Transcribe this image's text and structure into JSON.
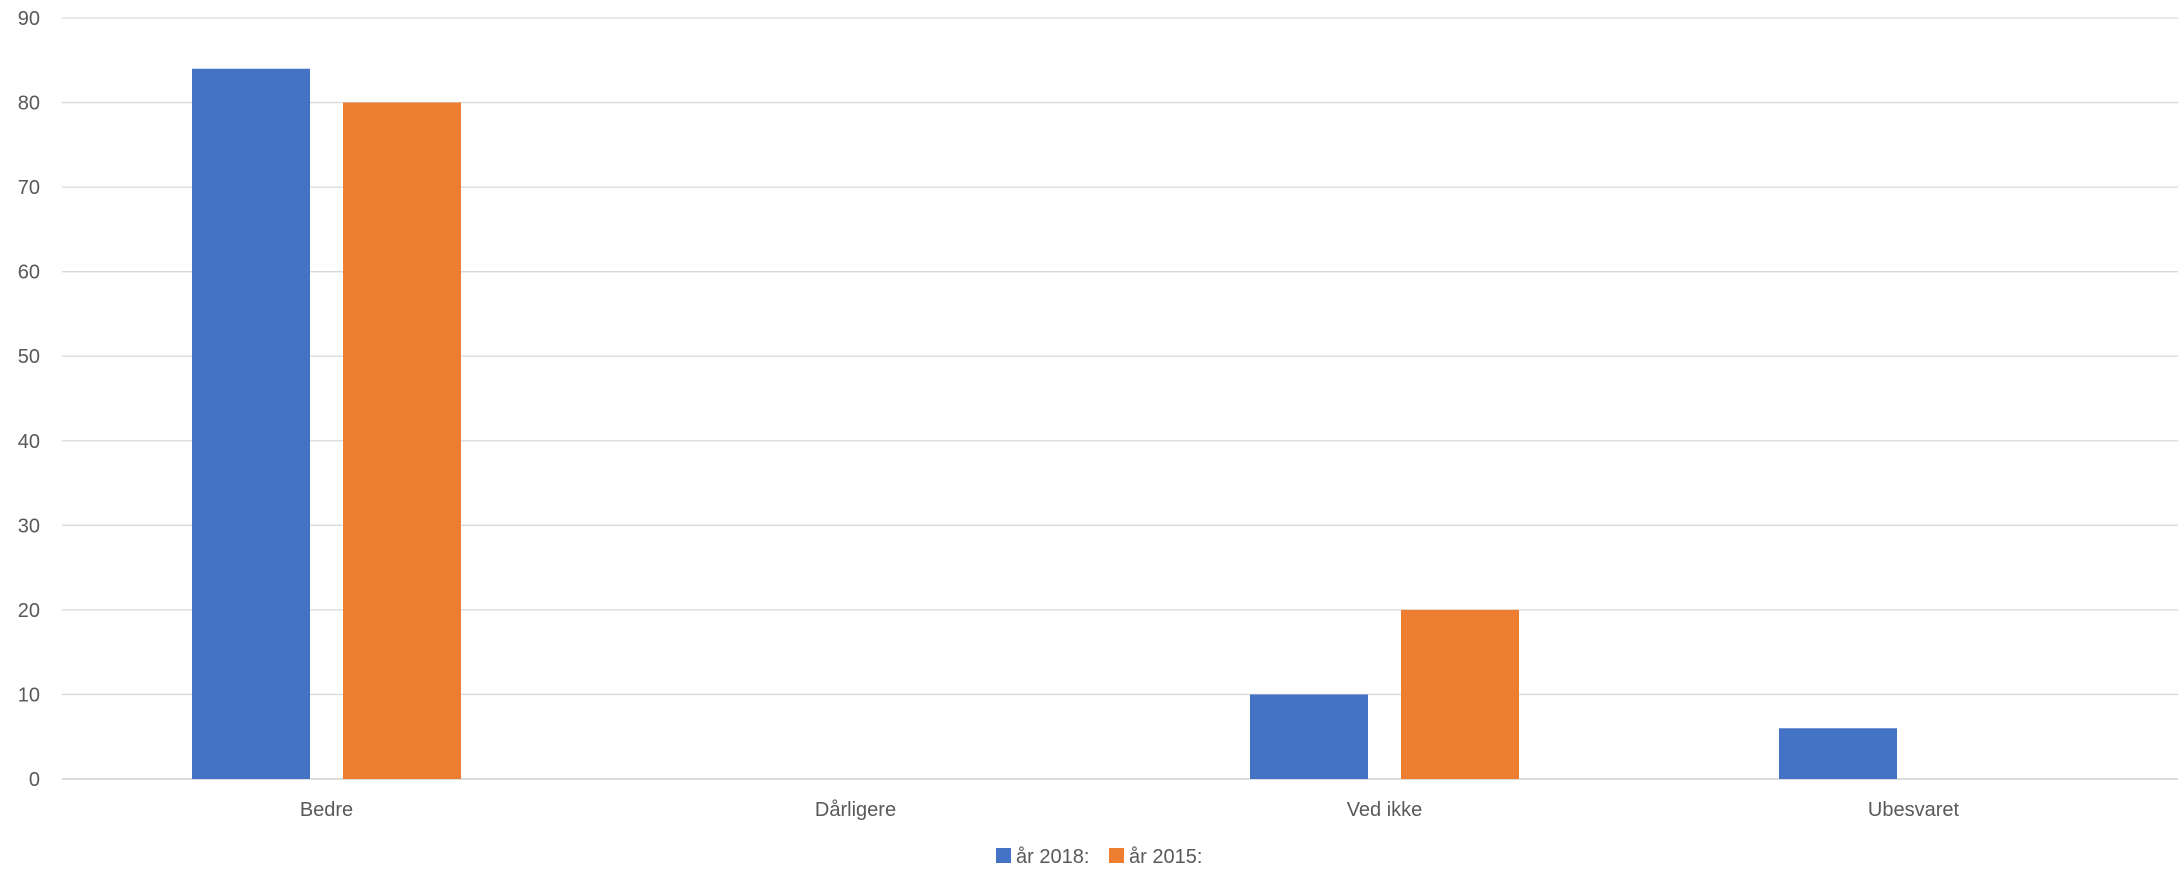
{
  "chart_data": {
    "type": "bar",
    "title": "",
    "xlabel": "",
    "ylabel": "",
    "categories": [
      "Bedre",
      "Dårligere",
      "Ved ikke",
      "Ubesvaret"
    ],
    "series": [
      {
        "name": "år 2018:",
        "color": "#4472C4",
        "values": [
          84,
          0,
          10,
          6
        ]
      },
      {
        "name": "år 2015:",
        "color": "#ED7D31",
        "values": [
          80,
          0,
          20,
          0
        ]
      }
    ],
    "ylim": [
      0,
      90
    ],
    "yticks": [
      0,
      10,
      20,
      30,
      40,
      50,
      60,
      70,
      80,
      90
    ],
    "grid": true,
    "legend_position": "bottom-center"
  }
}
